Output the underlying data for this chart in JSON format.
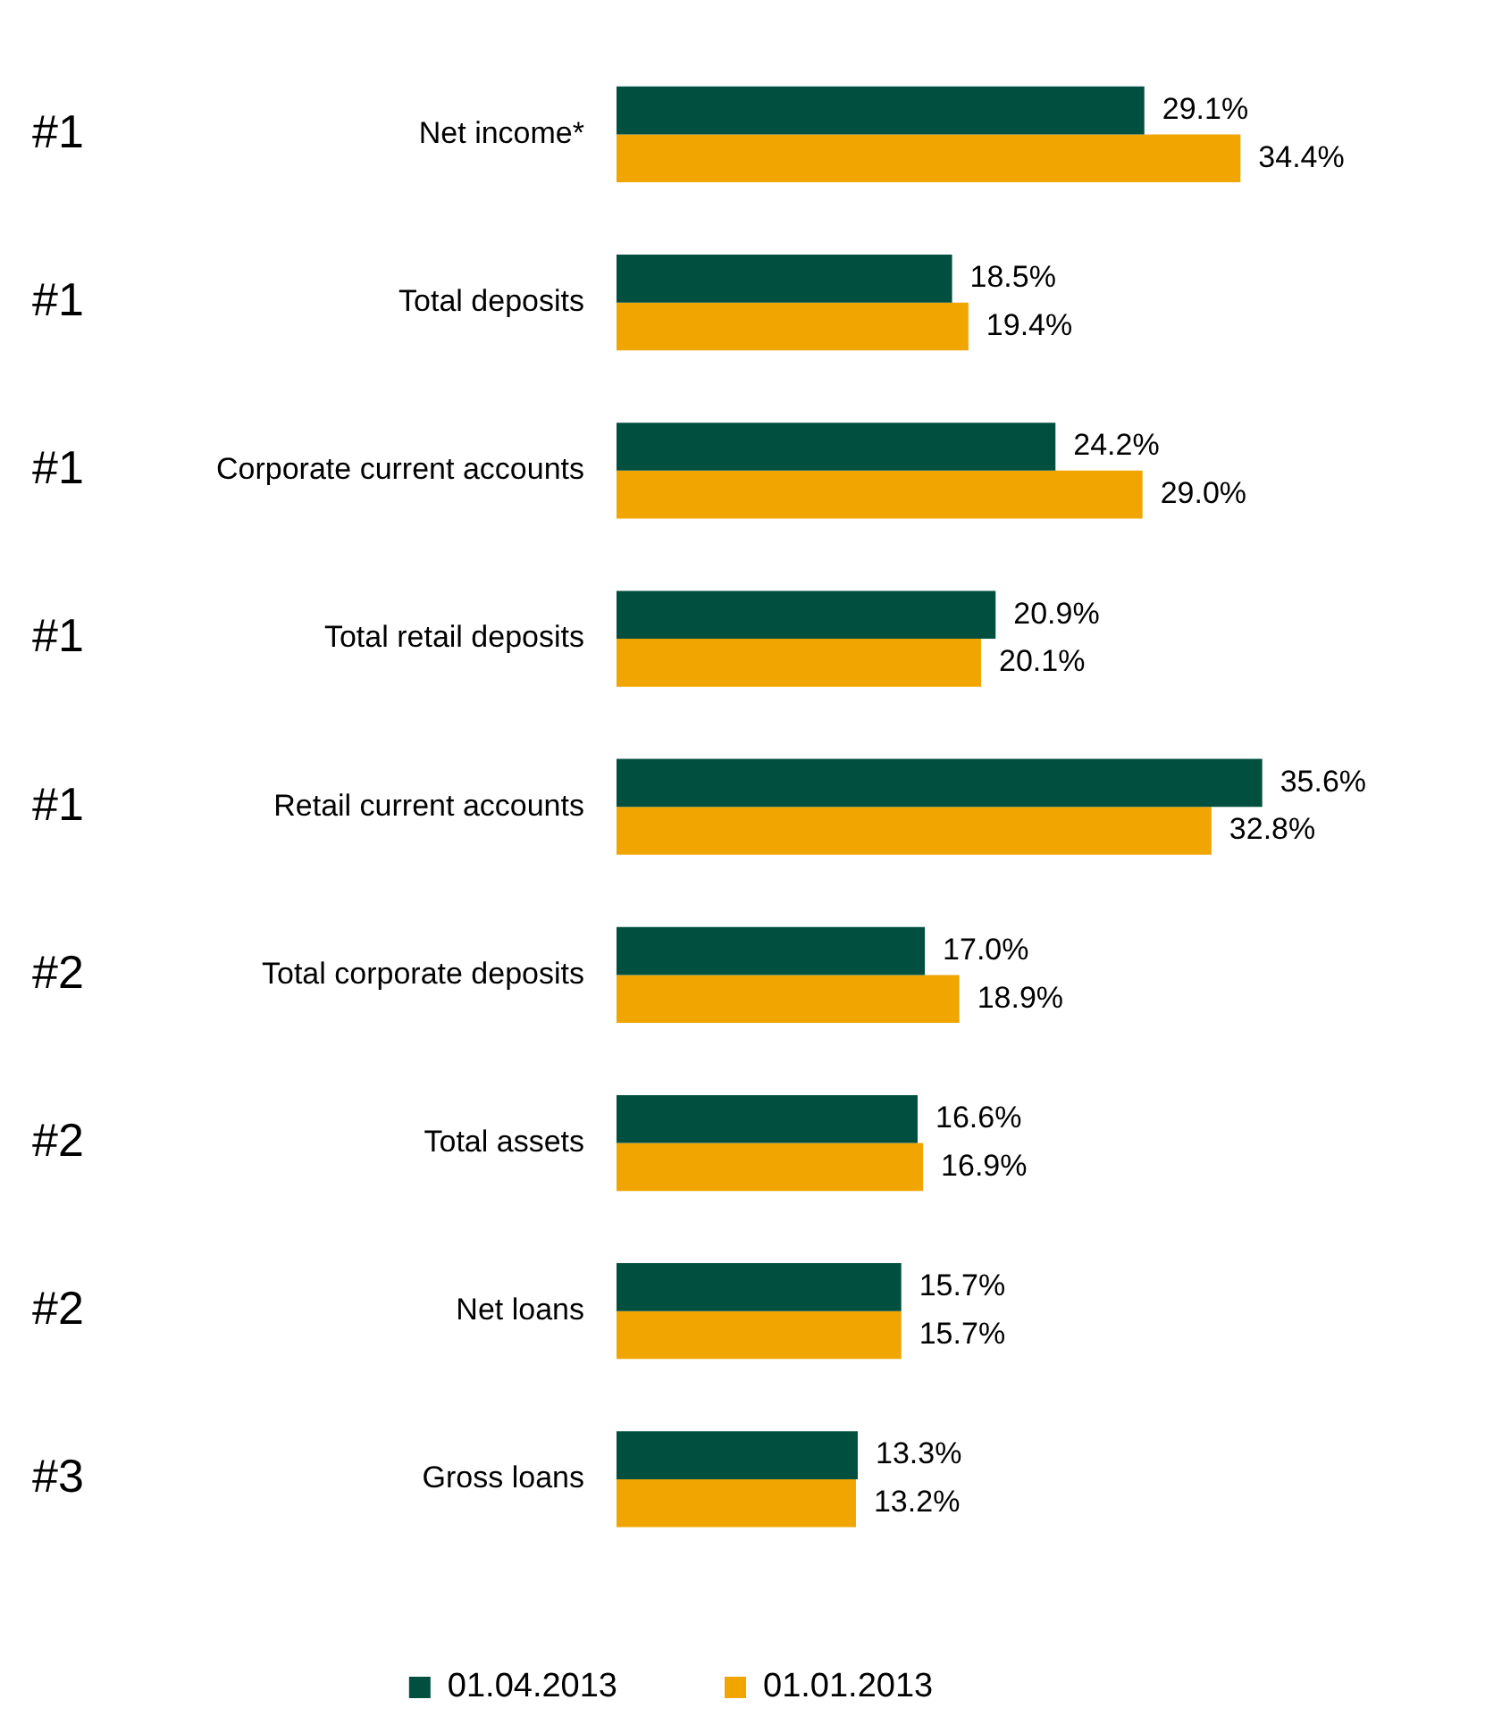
{
  "chart_data": {
    "type": "bar",
    "orientation": "horizontal",
    "categories": [
      "Net income*",
      "Total deposits",
      "Corporate current accounts",
      "Total retail deposits",
      "Retail current accounts",
      "Total corporate deposits",
      "Total assets",
      "Net loans",
      "Gross loans"
    ],
    "series": [
      {
        "name": "01.04.2013",
        "color": "#004f3f",
        "values": [
          29.1,
          18.5,
          24.2,
          20.9,
          35.6,
          17.0,
          16.6,
          15.7,
          13.3
        ],
        "value_labels": [
          "29.1%",
          "18.5%",
          "24.2%",
          "20.9%",
          "35.6%",
          "17.0%",
          "16.6%",
          "15.7%",
          "13.3%"
        ]
      },
      {
        "name": "01.01.2013",
        "color": "#f0a500",
        "values": [
          34.4,
          19.4,
          29.0,
          20.1,
          32.8,
          18.9,
          16.9,
          15.7,
          13.2
        ],
        "value_labels": [
          "34.4%",
          "19.4%",
          "29.0%",
          "20.1%",
          "32.8%",
          "18.9%",
          "16.9%",
          "15.7%",
          "13.2%"
        ]
      }
    ],
    "legend": "bottom",
    "tick_labels": "y",
    "grid": false,
    "annotations": [
      "#1",
      "#1",
      "#1",
      "#1",
      "#1",
      "#2",
      "#2",
      "#2",
      "#3"
    ]
  }
}
